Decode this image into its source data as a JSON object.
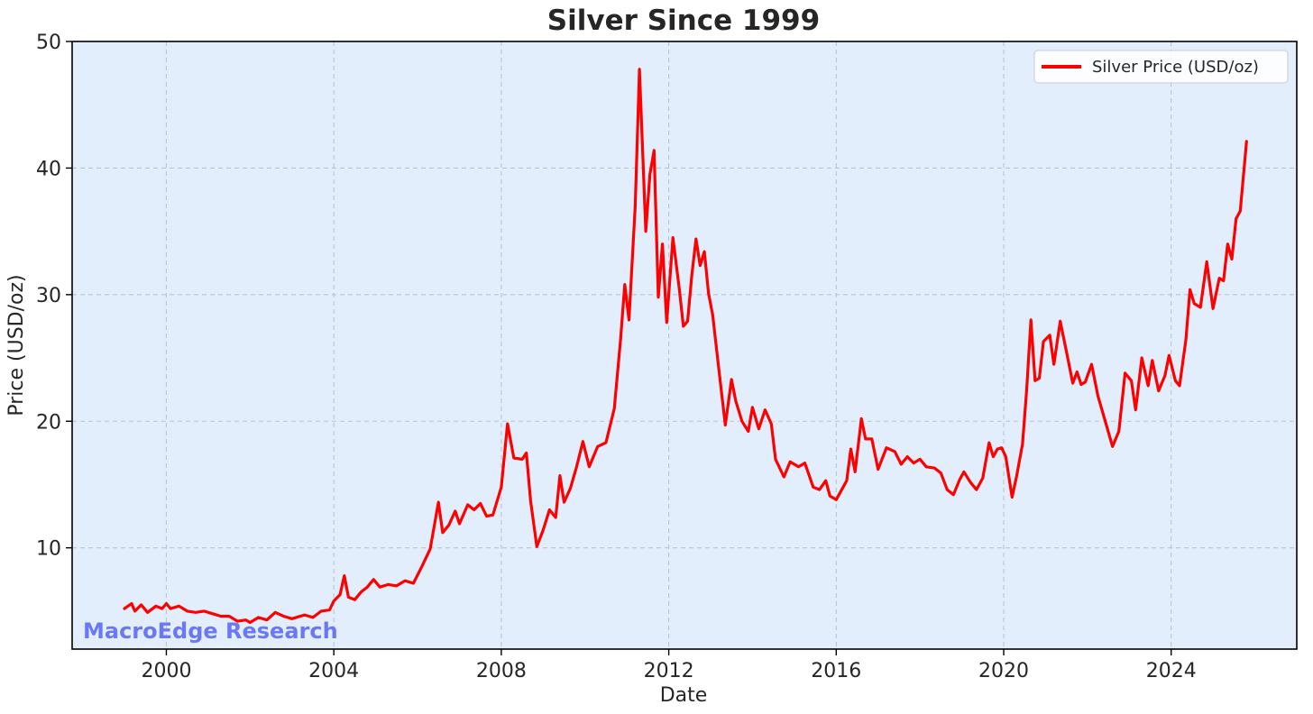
{
  "chart_data": {
    "type": "line",
    "title": "Silver Since 1999",
    "xlabel": "Date",
    "ylabel": "Price (USD/oz)",
    "xlim": [
      1997.75,
      2027.0
    ],
    "ylim": [
      2.0,
      50.0
    ],
    "x_ticks": [
      2000,
      2004,
      2008,
      2012,
      2016,
      2020,
      2024
    ],
    "y_ticks": [
      10,
      20,
      30,
      40,
      50
    ],
    "grid": true,
    "legend_position": "top-right",
    "series": [
      {
        "name": "Silver Price (USD/oz)",
        "color": "#ff0000",
        "points": [
          [
            1999.0,
            5.2
          ],
          [
            1999.17,
            5.6
          ],
          [
            1999.25,
            5.0
          ],
          [
            1999.4,
            5.5
          ],
          [
            1999.55,
            4.9
          ],
          [
            1999.75,
            5.4
          ],
          [
            1999.9,
            5.2
          ],
          [
            2000.0,
            5.6
          ],
          [
            2000.1,
            5.2
          ],
          [
            2000.3,
            5.4
          ],
          [
            2000.5,
            5.0
          ],
          [
            2000.7,
            4.9
          ],
          [
            2000.9,
            5.0
          ],
          [
            2001.1,
            4.8
          ],
          [
            2001.3,
            4.6
          ],
          [
            2001.5,
            4.6
          ],
          [
            2001.7,
            4.2
          ],
          [
            2001.9,
            4.3
          ],
          [
            2002.0,
            4.1
          ],
          [
            2002.2,
            4.5
          ],
          [
            2002.4,
            4.3
          ],
          [
            2002.6,
            4.9
          ],
          [
            2002.8,
            4.6
          ],
          [
            2003.0,
            4.4
          ],
          [
            2003.3,
            4.7
          ],
          [
            2003.5,
            4.5
          ],
          [
            2003.7,
            5.0
          ],
          [
            2003.9,
            5.1
          ],
          [
            2004.0,
            5.8
          ],
          [
            2004.15,
            6.3
          ],
          [
            2004.25,
            7.8
          ],
          [
            2004.35,
            6.1
          ],
          [
            2004.5,
            5.9
          ],
          [
            2004.65,
            6.5
          ],
          [
            2004.8,
            6.9
          ],
          [
            2004.95,
            7.5
          ],
          [
            2005.1,
            6.9
          ],
          [
            2005.3,
            7.1
          ],
          [
            2005.5,
            7.0
          ],
          [
            2005.7,
            7.4
          ],
          [
            2005.9,
            7.2
          ],
          [
            2006.1,
            8.5
          ],
          [
            2006.3,
            9.9
          ],
          [
            2006.5,
            13.6
          ],
          [
            2006.6,
            11.2
          ],
          [
            2006.75,
            11.8
          ],
          [
            2006.9,
            12.9
          ],
          [
            2007.0,
            11.9
          ],
          [
            2007.2,
            13.4
          ],
          [
            2007.35,
            13.0
          ],
          [
            2007.5,
            13.5
          ],
          [
            2007.65,
            12.5
          ],
          [
            2007.8,
            12.6
          ],
          [
            2008.0,
            14.8
          ],
          [
            2008.15,
            19.8
          ],
          [
            2008.3,
            17.1
          ],
          [
            2008.5,
            17.0
          ],
          [
            2008.6,
            17.5
          ],
          [
            2008.7,
            13.7
          ],
          [
            2008.85,
            10.1
          ],
          [
            2009.0,
            11.4
          ],
          [
            2009.15,
            13.0
          ],
          [
            2009.3,
            12.4
          ],
          [
            2009.4,
            15.7
          ],
          [
            2009.5,
            13.6
          ],
          [
            2009.65,
            14.7
          ],
          [
            2009.8,
            16.4
          ],
          [
            2009.95,
            18.4
          ],
          [
            2010.1,
            16.4
          ],
          [
            2010.3,
            18.0
          ],
          [
            2010.5,
            18.3
          ],
          [
            2010.7,
            21.0
          ],
          [
            2010.85,
            26.5
          ],
          [
            2010.95,
            30.8
          ],
          [
            2011.05,
            28.0
          ],
          [
            2011.2,
            37.0
          ],
          [
            2011.3,
            47.8
          ],
          [
            2011.45,
            35.0
          ],
          [
            2011.55,
            39.5
          ],
          [
            2011.65,
            41.4
          ],
          [
            2011.75,
            29.8
          ],
          [
            2011.85,
            34.0
          ],
          [
            2011.95,
            27.8
          ],
          [
            2012.1,
            34.5
          ],
          [
            2012.25,
            30.5
          ],
          [
            2012.35,
            27.5
          ],
          [
            2012.45,
            27.9
          ],
          [
            2012.55,
            31.5
          ],
          [
            2012.65,
            34.4
          ],
          [
            2012.75,
            32.3
          ],
          [
            2012.85,
            33.4
          ],
          [
            2012.95,
            30.1
          ],
          [
            2013.05,
            28.4
          ],
          [
            2013.2,
            24.0
          ],
          [
            2013.35,
            19.7
          ],
          [
            2013.5,
            23.3
          ],
          [
            2013.6,
            21.6
          ],
          [
            2013.75,
            20.0
          ],
          [
            2013.9,
            19.2
          ],
          [
            2014.0,
            21.1
          ],
          [
            2014.15,
            19.4
          ],
          [
            2014.3,
            20.9
          ],
          [
            2014.45,
            19.8
          ],
          [
            2014.55,
            17.0
          ],
          [
            2014.75,
            15.6
          ],
          [
            2014.9,
            16.8
          ],
          [
            2015.1,
            16.4
          ],
          [
            2015.25,
            16.7
          ],
          [
            2015.45,
            14.8
          ],
          [
            2015.6,
            14.6
          ],
          [
            2015.75,
            15.3
          ],
          [
            2015.85,
            14.1
          ],
          [
            2016.0,
            13.8
          ],
          [
            2016.25,
            15.3
          ],
          [
            2016.35,
            17.8
          ],
          [
            2016.45,
            16.0
          ],
          [
            2016.6,
            20.2
          ],
          [
            2016.7,
            18.6
          ],
          [
            2016.85,
            18.6
          ],
          [
            2017.0,
            16.2
          ],
          [
            2017.2,
            17.9
          ],
          [
            2017.4,
            17.6
          ],
          [
            2017.55,
            16.6
          ],
          [
            2017.7,
            17.2
          ],
          [
            2017.85,
            16.7
          ],
          [
            2018.0,
            17.0
          ],
          [
            2018.15,
            16.4
          ],
          [
            2018.35,
            16.3
          ],
          [
            2018.5,
            15.9
          ],
          [
            2018.65,
            14.6
          ],
          [
            2018.8,
            14.2
          ],
          [
            2018.95,
            15.4
          ],
          [
            2019.05,
            16.0
          ],
          [
            2019.2,
            15.2
          ],
          [
            2019.35,
            14.6
          ],
          [
            2019.5,
            15.5
          ],
          [
            2019.65,
            18.3
          ],
          [
            2019.75,
            17.2
          ],
          [
            2019.85,
            17.8
          ],
          [
            2019.95,
            17.9
          ],
          [
            2020.05,
            17.2
          ],
          [
            2020.2,
            14.0
          ],
          [
            2020.3,
            15.5
          ],
          [
            2020.45,
            18.2
          ],
          [
            2020.55,
            22.5
          ],
          [
            2020.65,
            28.0
          ],
          [
            2020.75,
            23.2
          ],
          [
            2020.85,
            23.4
          ],
          [
            2020.95,
            26.3
          ],
          [
            2021.1,
            26.8
          ],
          [
            2021.2,
            24.5
          ],
          [
            2021.35,
            27.9
          ],
          [
            2021.5,
            25.5
          ],
          [
            2021.65,
            23.0
          ],
          [
            2021.75,
            23.9
          ],
          [
            2021.85,
            22.9
          ],
          [
            2021.95,
            23.1
          ],
          [
            2022.1,
            24.5
          ],
          [
            2022.25,
            22.0
          ],
          [
            2022.4,
            20.3
          ],
          [
            2022.6,
            18.0
          ],
          [
            2022.75,
            19.2
          ],
          [
            2022.9,
            23.8
          ],
          [
            2023.05,
            23.2
          ],
          [
            2023.15,
            20.9
          ],
          [
            2023.3,
            25.0
          ],
          [
            2023.45,
            22.8
          ],
          [
            2023.55,
            24.8
          ],
          [
            2023.7,
            22.4
          ],
          [
            2023.85,
            23.6
          ],
          [
            2023.95,
            25.2
          ],
          [
            2024.1,
            23.2
          ],
          [
            2024.2,
            22.8
          ],
          [
            2024.35,
            26.4
          ],
          [
            2024.45,
            30.4
          ],
          [
            2024.55,
            29.3
          ],
          [
            2024.7,
            29.0
          ],
          [
            2024.85,
            32.6
          ],
          [
            2025.0,
            28.9
          ],
          [
            2025.15,
            31.3
          ],
          [
            2025.25,
            31.1
          ],
          [
            2025.35,
            34.0
          ],
          [
            2025.45,
            32.8
          ],
          [
            2025.55,
            36.0
          ],
          [
            2025.65,
            36.6
          ],
          [
            2025.8,
            42.1
          ]
        ]
      }
    ]
  },
  "watermark": {
    "text": "MacroEdge Research",
    "color": "#6b78f5"
  },
  "colors": {
    "plot_background": "#e3eefd",
    "grid": "#b8c4d4",
    "axis": "#000000",
    "text": "#262626"
  }
}
